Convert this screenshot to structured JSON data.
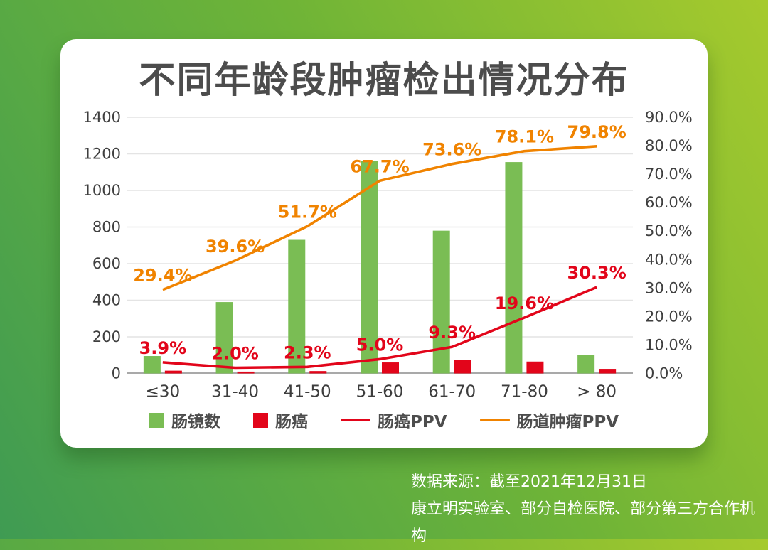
{
  "title": "不同年龄段肿瘤检出情况分布",
  "colors": {
    "green": "#7abd54",
    "red": "#e2051a",
    "orange": "#f08300",
    "grid": "#e4e4e4",
    "axis": "#a9a9a9",
    "tick_text": "#3f3f3f",
    "title_text": "#4c4c4c"
  },
  "chart_data": {
    "type": "bar+line combo",
    "title": "不同年龄段肿瘤检出情况分布",
    "categories": [
      "≤30",
      "31-40",
      "41-50",
      "51-60",
      "61-70",
      "71-80",
      "> 80"
    ],
    "series": [
      {
        "name": "肠镜数",
        "type": "bar",
        "axis": "left",
        "color": "green",
        "values": [
          95,
          390,
          730,
          1160,
          780,
          1155,
          100
        ]
      },
      {
        "name": "肠癌",
        "type": "bar",
        "axis": "left",
        "color": "red",
        "values": [
          15,
          10,
          13,
          60,
          75,
          65,
          25
        ]
      },
      {
        "name": "肠癌PPV",
        "type": "line",
        "axis": "right",
        "color": "red",
        "values": [
          3.9,
          2.0,
          2.3,
          5.0,
          9.3,
          19.6,
          30.3
        ],
        "point_labels": [
          "3.9%",
          "2.0%",
          "2.3%",
          "5.0%",
          "9.3%",
          "19.6%",
          "30.3%"
        ]
      },
      {
        "name": "肠道肿瘤PPV",
        "type": "line",
        "axis": "right",
        "color": "orange",
        "values": [
          29.4,
          39.6,
          51.7,
          67.7,
          73.6,
          78.1,
          79.8
        ],
        "point_labels": [
          "29.4%",
          "39.6%",
          "51.7%",
          "67.7%",
          "73.6%",
          "78.1%",
          "79.8%"
        ]
      }
    ],
    "left_axis": {
      "min": 0,
      "max": 1400,
      "step": 200,
      "ticks": [
        "1400",
        "1200",
        "1000",
        "800",
        "600",
        "400",
        "200",
        "0"
      ],
      "tick_values": [
        1400,
        1200,
        1000,
        800,
        600,
        400,
        200,
        0
      ]
    },
    "right_axis": {
      "min": 0,
      "max": 90,
      "step": 10,
      "ticks": [
        "90.0%",
        "80.0%",
        "70.0%",
        "60.0%",
        "50.0%",
        "40.0%",
        "30.0%",
        "20.0%",
        "10.0%",
        "0.0%"
      ],
      "tick_values": [
        90,
        80,
        70,
        60,
        50,
        40,
        30,
        20,
        10,
        0
      ]
    },
    "grid": "horizontal only",
    "legend_position": "bottom"
  },
  "legend": [
    {
      "label": "肠镜数",
      "swatch": "square",
      "color": "green"
    },
    {
      "label": "肠癌",
      "swatch": "square",
      "color": "red"
    },
    {
      "label": "肠癌PPV",
      "swatch": "line",
      "color": "red"
    },
    {
      "label": "肠道肿瘤PPV",
      "swatch": "line",
      "color": "orange"
    }
  ],
  "source": {
    "line1": "数据来源：截至2021年12月31日",
    "line2": "康立明实验室、部分自检医院、部分第三方合作机构"
  }
}
